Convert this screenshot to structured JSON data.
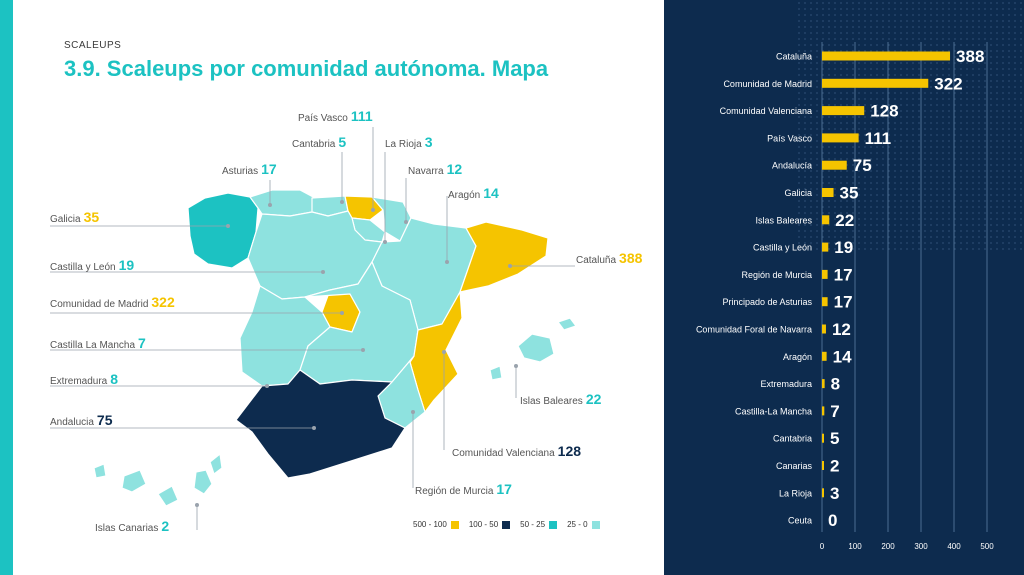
{
  "header": {
    "kicker": "SCALEUPS",
    "title": "3.9. Scaleups por comunidad autónoma. Mapa"
  },
  "colors": {
    "accent": "#1cc2c2",
    "yellow": "#f5c400",
    "navy": "#0d2b4e",
    "teal": "#1cc2c2",
    "light_teal": "#8ee2df"
  },
  "map_labels": [
    {
      "key": "pais_vasco",
      "name": "País Vasco",
      "value": "111"
    },
    {
      "key": "cantabria",
      "name": "Cantabria",
      "value": "5"
    },
    {
      "key": "la_rioja",
      "name": "La Rioja",
      "value": "3"
    },
    {
      "key": "asturias",
      "name": "Asturias",
      "value": "17"
    },
    {
      "key": "navarra",
      "name": "Navarra",
      "value": "12"
    },
    {
      "key": "aragon",
      "name": "Aragón",
      "value": "14"
    },
    {
      "key": "galicia",
      "name": "Galicia",
      "value": "35"
    },
    {
      "key": "cataluna",
      "name": "Cataluña",
      "value": "388"
    },
    {
      "key": "castilla_leon",
      "name": "Castilla y León",
      "value": "19"
    },
    {
      "key": "madrid",
      "name": "Comunidad de Madrid",
      "value": "322"
    },
    {
      "key": "castilla_mancha",
      "name": "Castilla La Mancha",
      "value": "7"
    },
    {
      "key": "extremadura",
      "name": "Extremadura",
      "value": "8"
    },
    {
      "key": "baleares",
      "name": "Islas Baleares",
      "value": "22"
    },
    {
      "key": "andalucia",
      "name": "Andalucia",
      "value": "75"
    },
    {
      "key": "valenciana",
      "name": "Comunidad Valenciana",
      "value": "128"
    },
    {
      "key": "murcia",
      "name": "Región de Murcia",
      "value": "17"
    },
    {
      "key": "canarias",
      "name": "Islas Canarias",
      "value": "2"
    }
  ],
  "legend": [
    {
      "label": "500 - 100",
      "color": "#f5c400"
    },
    {
      "label": "100 - 50",
      "color": "#0d2b4e"
    },
    {
      "label": "50 - 25",
      "color": "#1cc2c2"
    },
    {
      "label": "25 - 0",
      "color": "#8ee2df"
    }
  ],
  "chart_data": {
    "type": "bar",
    "orientation": "horizontal",
    "categories": [
      "Cataluña",
      "Comunidad de Madrid",
      "Comunidad Valenciana",
      "País Vasco",
      "Andalucía",
      "Galicia",
      "Islas Baleares",
      "Castilla y León",
      "Región de Murcia",
      "Principado de Asturias",
      "Comunidad Foral de Navarra",
      "Aragón",
      "Extremadura",
      "Castilla-La Mancha",
      "Cantabria",
      "Canarias",
      "La Rioja",
      "Ceuta"
    ],
    "values": [
      388,
      322,
      128,
      111,
      75,
      35,
      22,
      19,
      17,
      17,
      12,
      14,
      8,
      7,
      5,
      2,
      3,
      0
    ],
    "xlim": [
      0,
      500
    ],
    "xticks": [
      0,
      100,
      200,
      300,
      400,
      500
    ],
    "grid": true,
    "bar_color": "#f5c400",
    "title": "",
    "xlabel": "",
    "ylabel": ""
  }
}
